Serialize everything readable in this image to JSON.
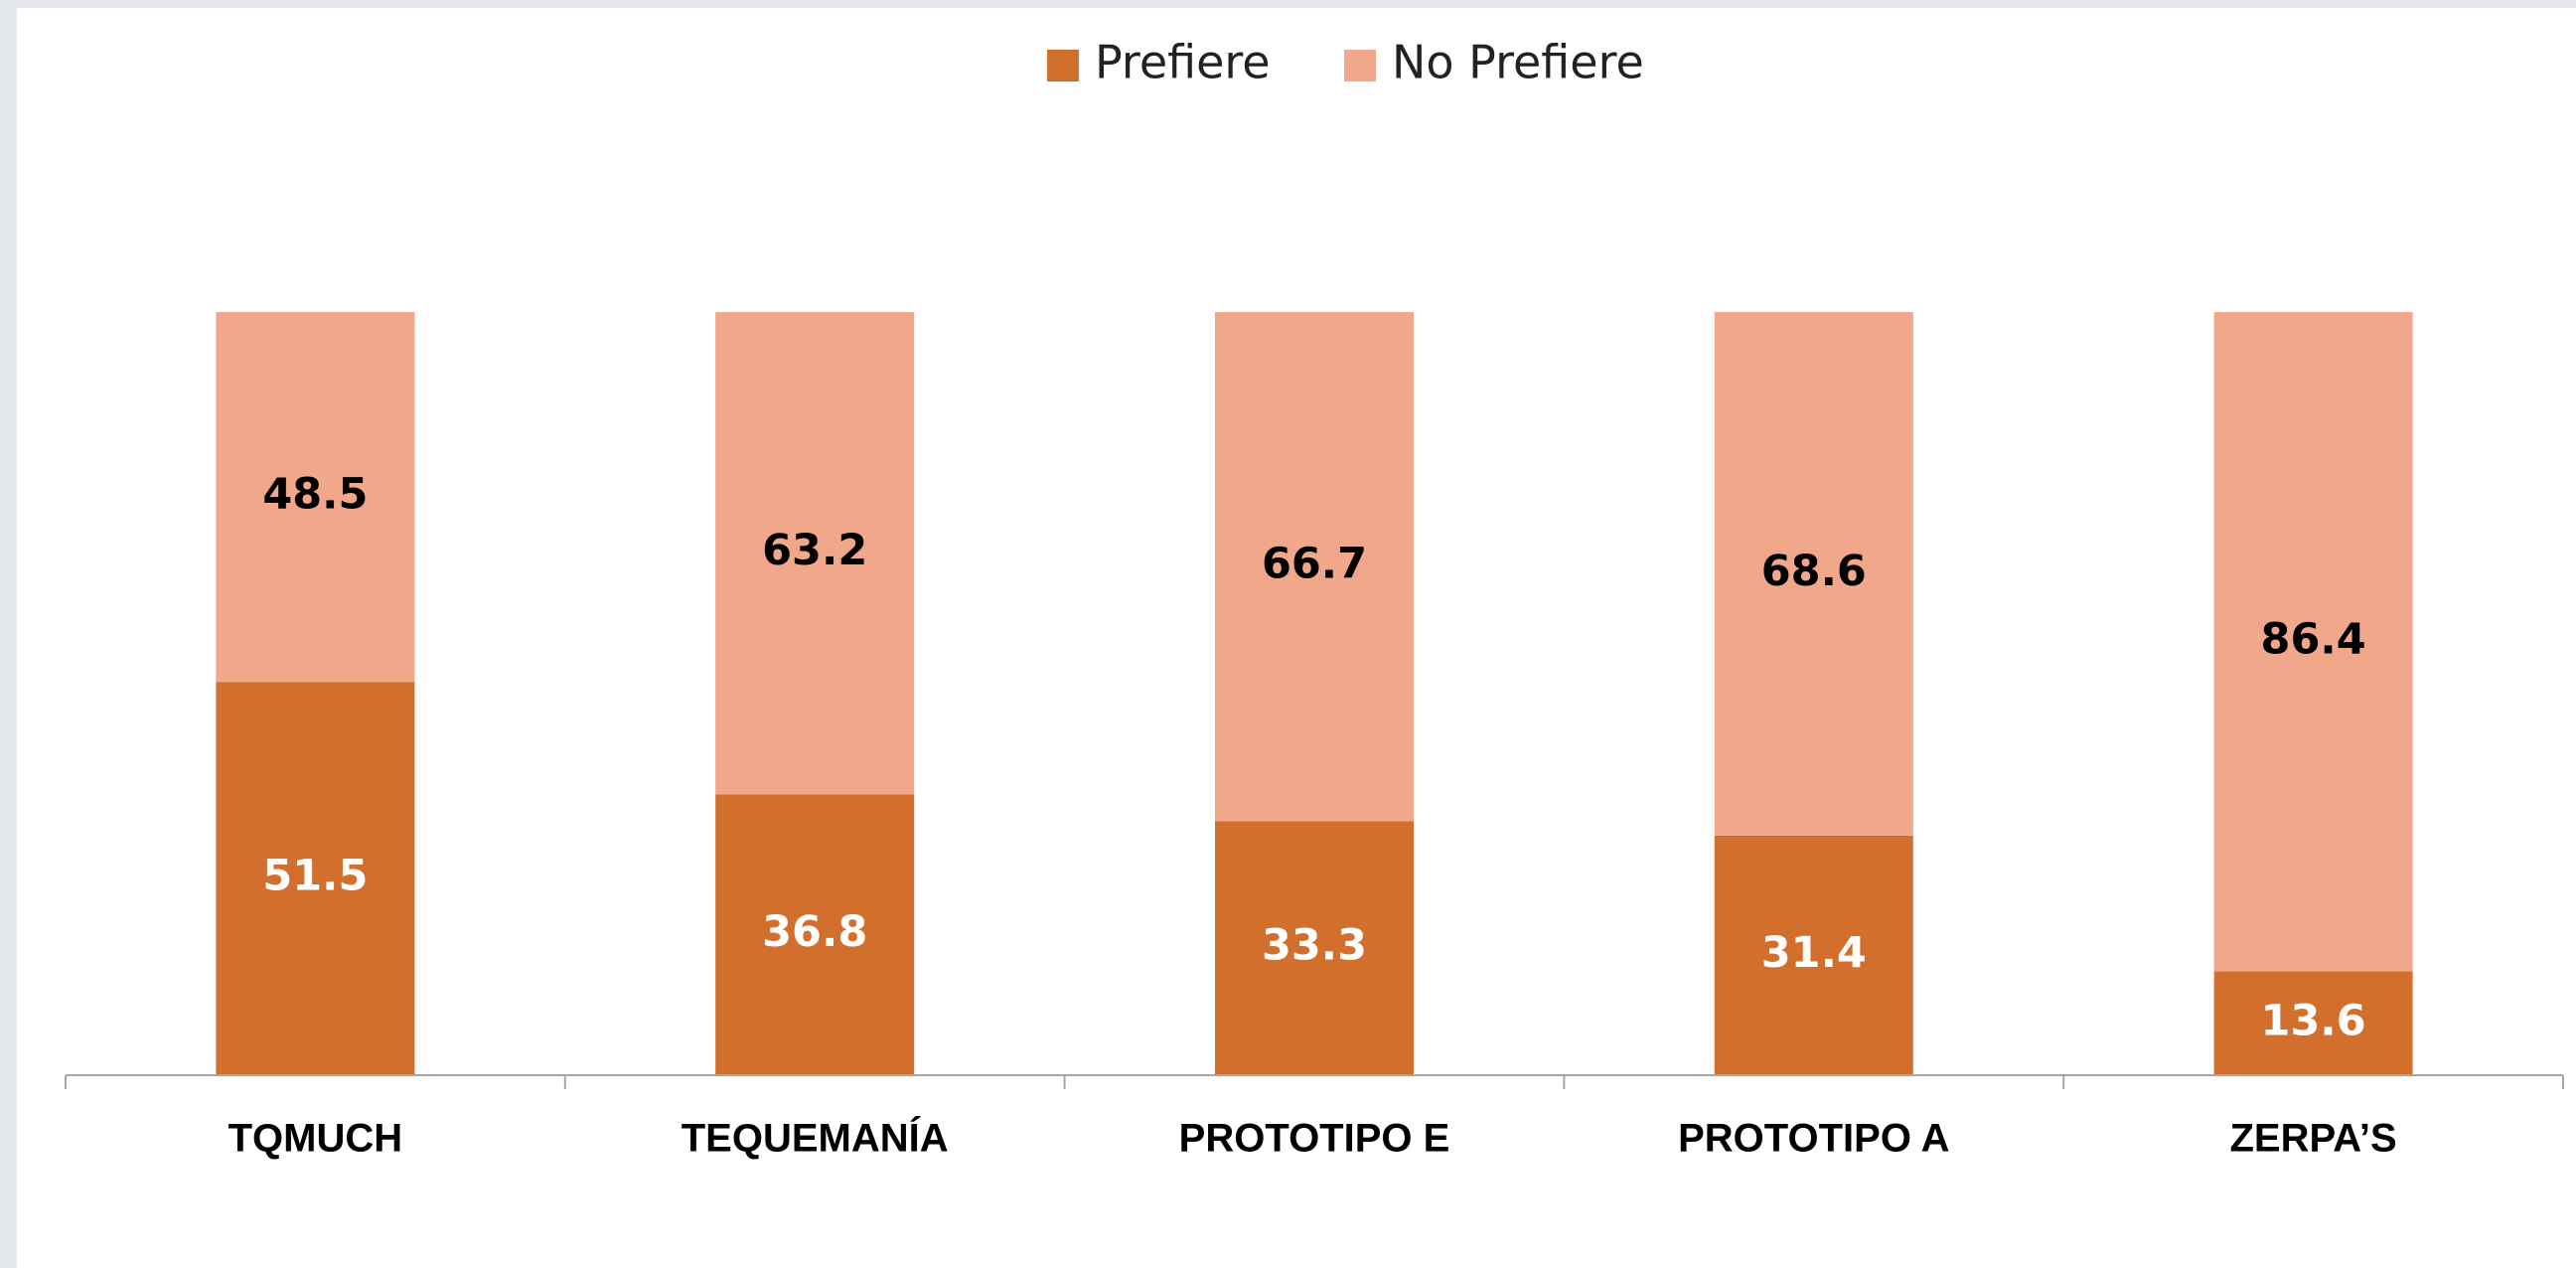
{
  "chart_data": {
    "type": "stacked_bar",
    "categories": [
      "TQMUCH",
      "TEQUEMANÍA",
      "PROTOTIPO E",
      "PROTOTIPO A",
      "ZERPA’S"
    ],
    "series": [
      {
        "name": "Prefiere",
        "color": "#d36f2c",
        "label_color": "#ffffff",
        "values": [
          51.5,
          36.8,
          33.3,
          31.4,
          13.6
        ]
      },
      {
        "name": "No Prefiere",
        "color": "#f1a78a",
        "label_color": "#000000",
        "values": [
          48.5,
          63.2,
          66.7,
          68.6,
          86.4
        ]
      }
    ],
    "ylim": [
      0,
      100
    ],
    "legend": "top"
  }
}
